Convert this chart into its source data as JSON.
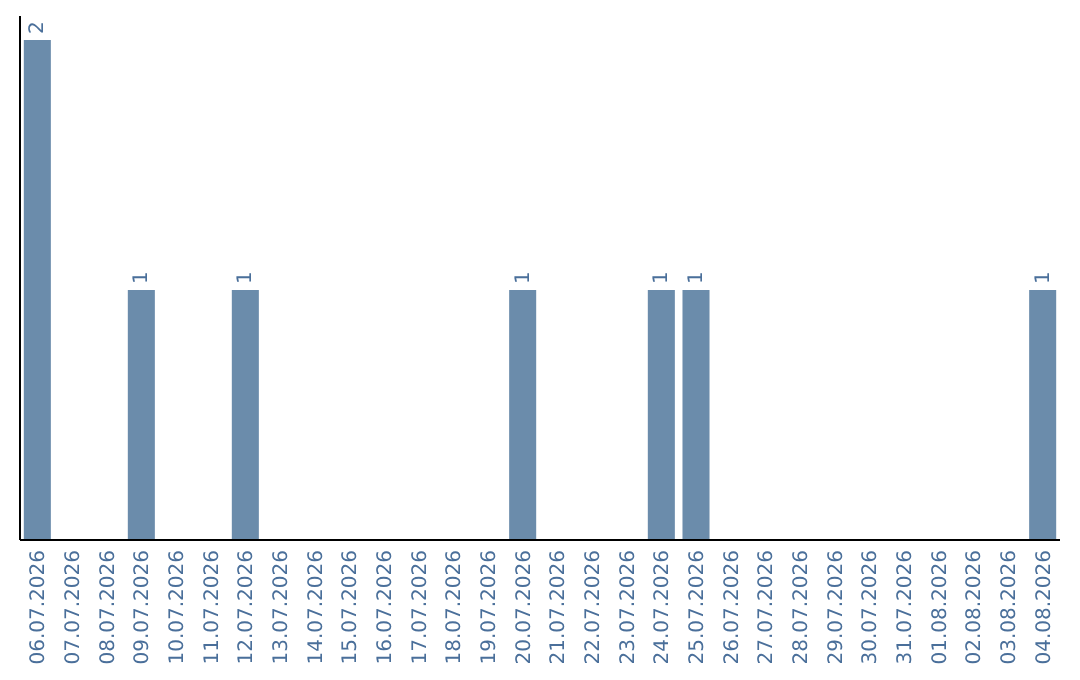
{
  "chart_data": {
    "type": "bar",
    "categories": [
      "06.07.2026",
      "07.07.2026",
      "08.07.2026",
      "09.07.2026",
      "10.07.2026",
      "11.07.2026",
      "12.07.2026",
      "13.07.2026",
      "14.07.2026",
      "15.07.2026",
      "16.07.2026",
      "17.07.2026",
      "18.07.2026",
      "19.07.2026",
      "20.07.2026",
      "21.07.2026",
      "22.07.2026",
      "23.07.2026",
      "24.07.2026",
      "25.07.2026",
      "26.07.2026",
      "27.07.2026",
      "28.07.2026",
      "29.07.2026",
      "30.07.2026",
      "31.07.2026",
      "01.08.2026",
      "02.08.2026",
      "03.08.2026",
      "04.08.2026"
    ],
    "values": [
      2,
      0,
      0,
      1,
      0,
      0,
      1,
      0,
      0,
      0,
      0,
      0,
      0,
      0,
      1,
      0,
      0,
      0,
      1,
      1,
      0,
      0,
      0,
      0,
      0,
      0,
      0,
      0,
      0,
      1
    ],
    "value_labels": [
      "2",
      null,
      null,
      "1",
      null,
      null,
      "1",
      null,
      null,
      null,
      null,
      null,
      null,
      null,
      "1",
      null,
      null,
      null,
      "1",
      "1",
      null,
      null,
      null,
      null,
      null,
      null,
      null,
      null,
      null,
      "1"
    ],
    "color": "#6b8cab"
  }
}
